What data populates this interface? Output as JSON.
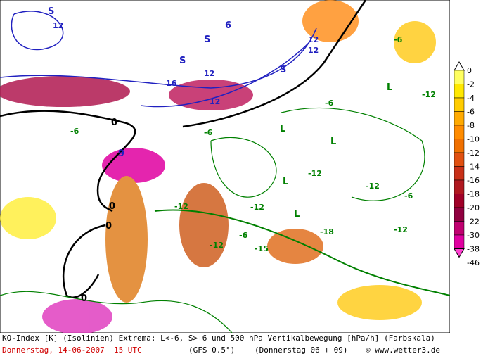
{
  "map_labels": [
    {
      "text": "S",
      "color": "#2020c0"
    },
    {
      "text": "12",
      "color": "#2020c0"
    },
    {
      "text": "S",
      "color": "#2020c0"
    },
    {
      "text": "S",
      "color": "#2020c0"
    },
    {
      "text": "6",
      "color": "#2020c0"
    },
    {
      "text": "12",
      "color": "#2020c0"
    },
    {
      "text": "12",
      "color": "#2020c0"
    },
    {
      "text": "16",
      "color": "#2020c0"
    },
    {
      "text": "12",
      "color": "#2020c0"
    },
    {
      "text": "12",
      "color": "#2020c0"
    },
    {
      "text": "S",
      "color": "#2020c0"
    },
    {
      "text": "9",
      "color": "#2020c0"
    },
    {
      "text": "0",
      "color": "#000000"
    },
    {
      "text": "0",
      "color": "#000000"
    },
    {
      "text": "0",
      "color": "#000000"
    },
    {
      "text": "0",
      "color": "#000000"
    },
    {
      "text": "-6",
      "color": "#008000"
    },
    {
      "text": "-6",
      "color": "#008000"
    },
    {
      "text": "L",
      "color": "#008000"
    },
    {
      "text": "-12",
      "color": "#008000"
    },
    {
      "text": "L",
      "color": "#008000"
    },
    {
      "text": "-12",
      "color": "#008000"
    },
    {
      "text": "-12",
      "color": "#008000"
    },
    {
      "text": "-6",
      "color": "#008000"
    },
    {
      "text": "-12",
      "color": "#008000"
    },
    {
      "text": "-15",
      "color": "#008000"
    },
    {
      "text": "-18",
      "color": "#008000"
    },
    {
      "text": "-12",
      "color": "#008000"
    },
    {
      "text": "-6",
      "color": "#008000"
    },
    {
      "text": "L",
      "color": "#008000"
    },
    {
      "text": "-12",
      "color": "#008000"
    },
    {
      "text": "-6",
      "color": "#008000"
    },
    {
      "text": "-12",
      "color": "#008000"
    },
    {
      "text": "L",
      "color": "#008000"
    },
    {
      "text": "-6",
      "color": "#008000"
    },
    {
      "text": "L",
      "color": "#008000"
    }
  ],
  "color_scale": [
    {
      "label": "0",
      "color": "#ffffff"
    },
    {
      "label": "-2",
      "color": "#ffff60"
    },
    {
      "label": "-4",
      "color": "#ffe800"
    },
    {
      "label": "-6",
      "color": "#ffcc00"
    },
    {
      "label": "-8",
      "color": "#ffaa00"
    },
    {
      "label": "-10",
      "color": "#ff8c00"
    },
    {
      "label": "-12",
      "color": "#f07000"
    },
    {
      "label": "-14",
      "color": "#e05010"
    },
    {
      "label": "-16",
      "color": "#c83018"
    },
    {
      "label": "-18",
      "color": "#b01820"
    },
    {
      "label": "-20",
      "color": "#a00028"
    },
    {
      "label": "-22",
      "color": "#900040"
    },
    {
      "label": "-30",
      "color": "#c00070"
    },
    {
      "label": "-38",
      "color": "#e000a0"
    },
    {
      "label": "-46",
      "color": "#ff40d0"
    }
  ],
  "footer": {
    "line1": "KO-Index [K] (Isolinien) Extrema: L<-6, S>+6 und 500 hPa Vertikalbewegung [hPa/h] (Farbskala)",
    "date": "Donnerstag, 14-06-2007  15 UTC",
    "model": "(GFS 0.5°)",
    "run": "(Donnerstag 06 + 09)",
    "credit": "© www.wetter3.de"
  }
}
